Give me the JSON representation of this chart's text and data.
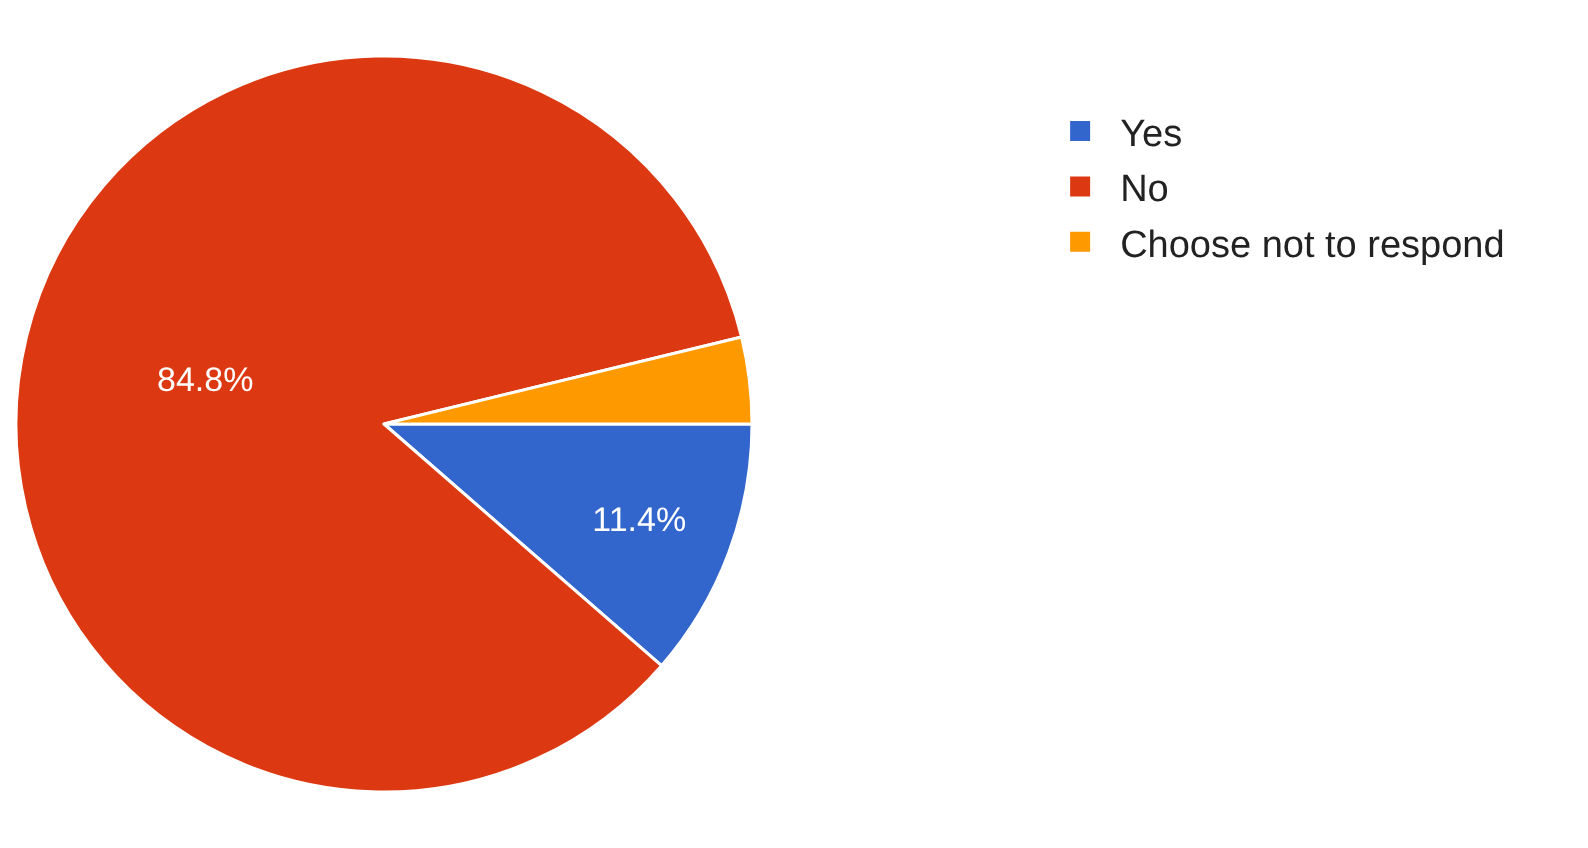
{
  "chart_data": {
    "type": "pie",
    "categories": [
      "Yes",
      "No",
      "Choose not to respond"
    ],
    "values": [
      11.4,
      84.8,
      3.8
    ],
    "value_labels": [
      "11.4%",
      "84.8%",
      null
    ],
    "colors": [
      "#3366cc",
      "#dc3912",
      "#ff9900"
    ],
    "legend": "top right"
  }
}
